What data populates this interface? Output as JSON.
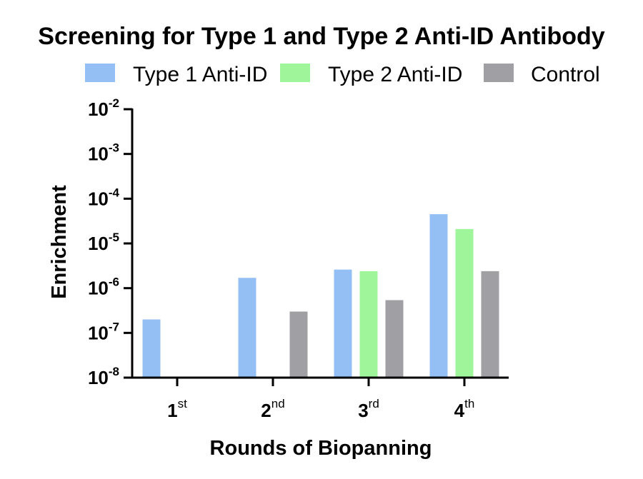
{
  "chart_data": {
    "type": "bar",
    "title": "Screening for Type 1 and Type 2 Anti-ID Antibody",
    "xlabel": "Rounds of Biopanning",
    "ylabel": "Enrichment",
    "yscale": "log",
    "ylim": [
      1e-08,
      0.01
    ],
    "yticks": [
      {
        "base": "10",
        "exp": "-2",
        "value": 0.01
      },
      {
        "base": "10",
        "exp": "-3",
        "value": 0.001
      },
      {
        "base": "10",
        "exp": "-4",
        "value": 0.0001
      },
      {
        "base": "10",
        "exp": "-5",
        "value": 1e-05
      },
      {
        "base": "10",
        "exp": "-6",
        "value": 1e-06
      },
      {
        "base": "10",
        "exp": "-7",
        "value": 1e-07
      },
      {
        "base": "10",
        "exp": "-8",
        "value": 1e-08
      }
    ],
    "categories": [
      {
        "base": "1",
        "sup": "st"
      },
      {
        "base": "2",
        "sup": "nd"
      },
      {
        "base": "3",
        "sup": "rd"
      },
      {
        "base": "4",
        "sup": "th"
      }
    ],
    "series": [
      {
        "name": "Type 1 Anti-ID",
        "color": "#94bff5",
        "values": [
          2e-07,
          1.7e-06,
          2.6e-06,
          4.5e-05
        ]
      },
      {
        "name": "Type 2 Anti-ID",
        "color": "#9ef59a",
        "values": [
          null,
          null,
          2.4e-06,
          2.1e-05
        ]
      },
      {
        "name": "Control",
        "color": "#a0a0a4",
        "values": [
          null,
          3e-07,
          5.4e-07,
          2.4e-06
        ]
      }
    ],
    "legend_position": "top",
    "grid": false
  }
}
